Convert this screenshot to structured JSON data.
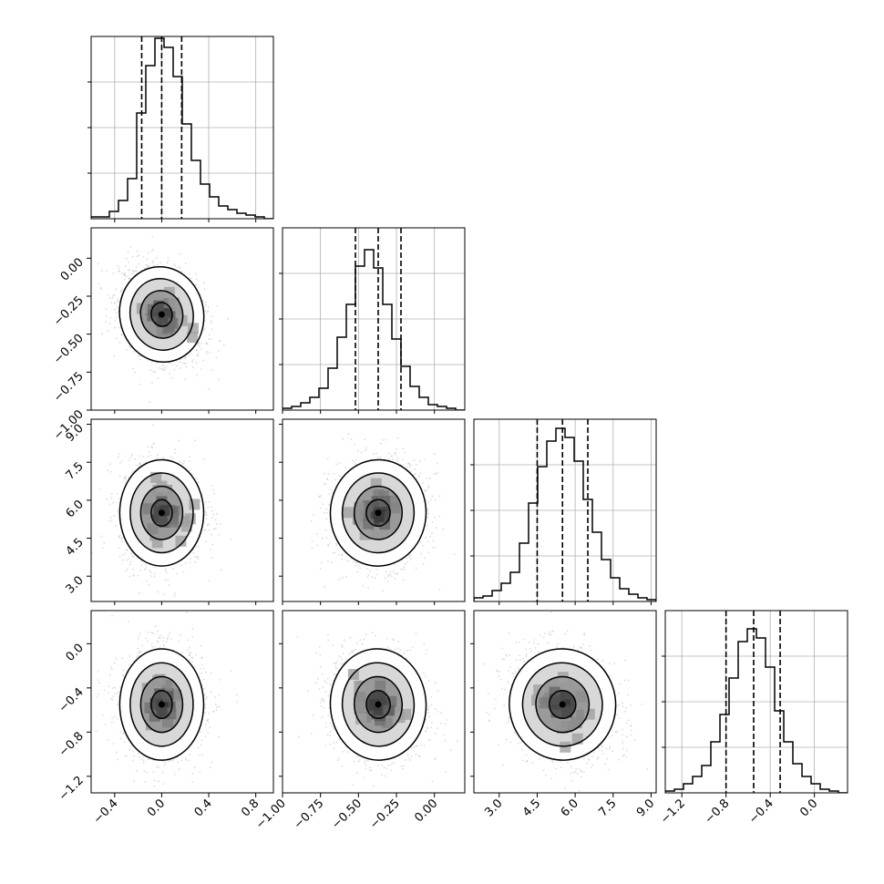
{
  "chart_data": {
    "type": "corner",
    "parameter_count": 4,
    "show_titles": false,
    "grid": true,
    "quantile_lines": "dashed",
    "colors": {
      "hist": "#000000",
      "contour": "#000000",
      "density_dark": "#1a1a1a",
      "density_light": "#ffffff",
      "scatter": "#bdbdbd",
      "grid": "#b0b0b0",
      "frame": "#000000"
    },
    "params": [
      {
        "range": [
          -0.6,
          0.95
        ],
        "ticks": [
          -0.4,
          0.0,
          0.4,
          0.8
        ],
        "tick_labels": [
          "−0.4",
          "0.0",
          "0.4",
          "0.8"
        ],
        "quantiles": [
          -0.17,
          0.0,
          0.17
        ],
        "hist": [
          0.01,
          0.01,
          0.04,
          0.1,
          0.22,
          0.58,
          0.84,
          0.99,
          0.94,
          0.78,
          0.52,
          0.32,
          0.19,
          0.12,
          0.07,
          0.05,
          0.03,
          0.02,
          0.01,
          0.0
        ]
      },
      {
        "range": [
          -1.0,
          0.2
        ],
        "ticks": [
          -1.0,
          -0.75,
          -0.5,
          -0.25,
          0.0
        ],
        "tick_labels": [
          "−1.00",
          "−0.75",
          "−0.50",
          "−0.25",
          "0.00"
        ],
        "quantiles": [
          -0.52,
          -0.37,
          -0.22
        ],
        "hist": [
          0.01,
          0.02,
          0.04,
          0.07,
          0.12,
          0.23,
          0.4,
          0.58,
          0.79,
          0.88,
          0.78,
          0.58,
          0.39,
          0.24,
          0.13,
          0.07,
          0.03,
          0.02,
          0.01,
          0.0
        ]
      },
      {
        "range": [
          2.0,
          9.2
        ],
        "ticks": [
          3.0,
          4.5,
          6.0,
          7.5,
          9.0
        ],
        "tick_labels": [
          "3.0",
          "4.5",
          "6.0",
          "7.5",
          "9.0"
        ],
        "quantiles": [
          4.5,
          5.5,
          6.5
        ],
        "hist": [
          0.02,
          0.03,
          0.06,
          0.1,
          0.16,
          0.32,
          0.54,
          0.74,
          0.88,
          0.95,
          0.9,
          0.77,
          0.56,
          0.38,
          0.23,
          0.13,
          0.07,
          0.04,
          0.02,
          0.01
        ]
      },
      {
        "range": [
          -1.35,
          0.3
        ],
        "ticks": [
          -1.2,
          -0.8,
          -0.4,
          0.0
        ],
        "tick_labels": [
          "−1.2",
          "−0.8",
          "−0.4",
          "0.0"
        ],
        "quantiles": [
          -0.8,
          -0.55,
          -0.31
        ],
        "hist": [
          0.01,
          0.02,
          0.05,
          0.09,
          0.15,
          0.28,
          0.43,
          0.63,
          0.83,
          0.9,
          0.85,
          0.69,
          0.45,
          0.28,
          0.16,
          0.09,
          0.05,
          0.02,
          0.01,
          0.0
        ]
      }
    ],
    "pairs": [
      {
        "x": 0,
        "y": 1,
        "center": [
          0.0,
          -0.37
        ],
        "spread": [
          0.17,
          0.15
        ],
        "rho": -0.3
      },
      {
        "x": 0,
        "y": 2,
        "center": [
          0.0,
          5.5
        ],
        "spread": [
          0.17,
          1.0
        ],
        "rho": 0.0
      },
      {
        "x": 1,
        "y": 2,
        "center": [
          -0.37,
          5.5
        ],
        "spread": [
          0.15,
          1.0
        ],
        "rho": 0.05
      },
      {
        "x": 0,
        "y": 3,
        "center": [
          0.0,
          -0.55
        ],
        "spread": [
          0.17,
          0.24
        ],
        "rho": 0.0
      },
      {
        "x": 1,
        "y": 3,
        "center": [
          -0.37,
          -0.55
        ],
        "spread": [
          0.15,
          0.24
        ],
        "rho": -0.1
      },
      {
        "x": 2,
        "y": 3,
        "center": [
          5.5,
          -0.55
        ],
        "spread": [
          1.0,
          0.24
        ],
        "rho": -0.2
      }
    ],
    "contour_levels_sigma": [
      0.5,
      1.0,
      1.5,
      2.0
    ]
  }
}
